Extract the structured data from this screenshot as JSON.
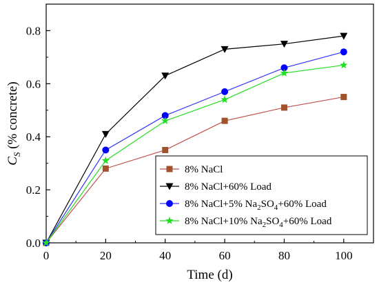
{
  "chart_data": {
    "type": "line",
    "xlabel": "Time (d)",
    "ylabel_main": "C",
    "ylabel_sub": "S",
    "ylabel_rest": " (% concrete)",
    "xlim": [
      0,
      110
    ],
    "ylim": [
      0,
      0.9
    ],
    "xticks": [
      0,
      20,
      40,
      60,
      80,
      100
    ],
    "xtick_labels": [
      "0",
      "20",
      "40",
      "60",
      "80",
      "100"
    ],
    "yticks": [
      0,
      0.2,
      0.4,
      0.6,
      0.8
    ],
    "ytick_labels": [
      "0.0",
      "0.2",
      "0.4",
      "0.6",
      "0.8"
    ],
    "grid": false,
    "legend_placement": "bottom-right",
    "x": [
      0,
      20,
      40,
      60,
      80,
      100
    ],
    "series": [
      {
        "legend": "8% NaCl",
        "legend_parts": [
          {
            "t": "8% NaCl"
          }
        ],
        "color": "#a0522d",
        "line_color": "#c0504d",
        "marker": "square",
        "values": [
          0.0,
          0.28,
          0.35,
          0.46,
          0.51,
          0.55
        ]
      },
      {
        "legend": "8% NaCl+60% Load",
        "legend_parts": [
          {
            "t": "8% NaCl+60% Load"
          }
        ],
        "color": "#000000",
        "line_color": "#000000",
        "marker": "triangle-down",
        "values": [
          0.0,
          0.41,
          0.63,
          0.73,
          0.75,
          0.78
        ]
      },
      {
        "legend": "8% NaCl+5% Na2SO4+60% Load",
        "legend_parts": [
          {
            "t": "8% NaCl+5% Na"
          },
          {
            "t": "2",
            "sub": true
          },
          {
            "t": "SO"
          },
          {
            "t": "4",
            "sub": true
          },
          {
            "t": "+60% Load"
          }
        ],
        "color": "#0000ff",
        "line_color": "#3333ff",
        "marker": "circle",
        "values": [
          0.0,
          0.35,
          0.48,
          0.57,
          0.66,
          0.72
        ]
      },
      {
        "legend": "8% NaCl+10% Na2SO4+60% Load",
        "legend_parts": [
          {
            "t": "8% NaCl+10% Na"
          },
          {
            "t": "2",
            "sub": true
          },
          {
            "t": "SO"
          },
          {
            "t": "4",
            "sub": true
          },
          {
            "t": "+60% Load"
          }
        ],
        "color": "#22dd22",
        "line_color": "#22dd22",
        "marker": "star",
        "values": [
          0.0,
          0.31,
          0.46,
          0.54,
          0.64,
          0.67
        ]
      }
    ]
  }
}
